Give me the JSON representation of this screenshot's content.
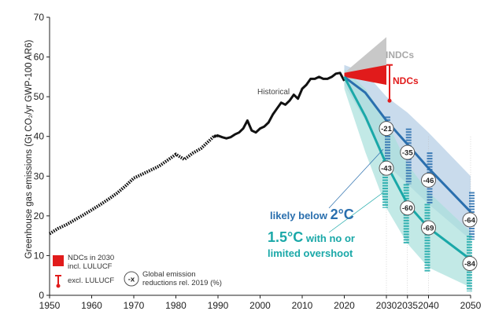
{
  "chart_data": {
    "type": "line",
    "ylabel": "Greenhouse gas emissions (Gt CO₂/yr GWP-100 AR6)",
    "xlim": [
      1950,
      2050
    ],
    "ylim": [
      0,
      70
    ],
    "x_ticks": [
      "1950",
      "1960",
      "1970",
      "1980",
      "1990",
      "2000",
      "2010",
      "2020",
      "2030",
      "2035",
      "2040",
      "2050"
    ],
    "y_ticks": [
      "0",
      "10",
      "20",
      "30",
      "40",
      "50",
      "60",
      "70"
    ],
    "historical": {
      "name": "Historical",
      "x": [
        1950,
        1952,
        1954,
        1956,
        1958,
        1960,
        1962,
        1964,
        1966,
        1968,
        1970,
        1972,
        1974,
        1976,
        1978,
        1980,
        1982,
        1984,
        1986,
        1988,
        1989,
        1990,
        1991,
        1992,
        1993,
        1994,
        1995,
        1996,
        1997,
        1998,
        1999,
        2000,
        2001,
        2002,
        2003,
        2004,
        2005,
        2006,
        2007,
        2008,
        2009,
        2010,
        2011,
        2012,
        2013,
        2014,
        2015,
        2016,
        2017,
        2018,
        2019,
        2020
      ],
      "y": [
        15.5,
        16.8,
        17.8,
        19.0,
        20.2,
        21.5,
        22.8,
        24.2,
        25.7,
        27.5,
        29.5,
        30.5,
        31.5,
        32.5,
        34.0,
        35.5,
        34.2,
        35.8,
        37.0,
        39.0,
        40.0,
        40.2,
        39.8,
        39.5,
        39.8,
        40.5,
        41.0,
        42.0,
        44.0,
        41.5,
        41.0,
        42.0,
        42.5,
        43.5,
        45.5,
        47.0,
        48.5,
        48.0,
        49.0,
        50.5,
        49.5,
        52.0,
        53.0,
        54.5,
        54.5,
        55.0,
        54.5,
        54.5,
        55.0,
        55.8,
        56.0,
        54.0
      ]
    },
    "historical_dotted_until": 1990,
    "indcs": {
      "label": "INDCs",
      "x": [
        2020,
        2030
      ],
      "low": [
        54,
        57
      ],
      "high": [
        56,
        65
      ]
    },
    "ndcs": {
      "label": "NDCs",
      "x": [
        2020,
        2030
      ],
      "low": [
        55,
        53
      ],
      "high": [
        56,
        58
      ],
      "range_2030": [
        49,
        58
      ]
    },
    "scenarios": [
      {
        "name": "likely below 2°C",
        "color": "#2a6fae",
        "x": [
          2020,
          2025,
          2030,
          2035,
          2040,
          2050
        ],
        "median": [
          55,
          51,
          44,
          38,
          32,
          21
        ],
        "low": [
          53,
          44,
          33,
          28,
          23,
          14
        ],
        "high": [
          58,
          56,
          50,
          46,
          41,
          30
        ],
        "bar_years": [
          2030,
          2035,
          2040,
          2050
        ],
        "bar_low": [
          34,
          28,
          23,
          14
        ],
        "bar_high": [
          45,
          42,
          36,
          26
        ],
        "reductions": [
          "-21",
          "-35",
          "-46",
          "-64"
        ],
        "reduction_values": [
          42,
          36,
          29,
          19
        ]
      },
      {
        "name": "1.5°C with no or limited overshoot",
        "color": "#1aa8a8",
        "x": [
          2020,
          2025,
          2030,
          2035,
          2040,
          2050
        ],
        "median": [
          55,
          45,
          33,
          23,
          17,
          9
        ],
        "low": [
          52,
          36,
          22,
          13,
          7,
          2
        ],
        "high": [
          57,
          52,
          44,
          33,
          26,
          16
        ],
        "bar_years": [
          2030,
          2035,
          2040,
          2050
        ],
        "bar_low": [
          22,
          13,
          6,
          1
        ],
        "bar_high": [
          34,
          28,
          23,
          15
        ],
        "reductions": [
          "-43",
          "-60",
          "-69",
          "-84"
        ],
        "reduction_values": [
          32,
          22,
          17,
          8
        ]
      }
    ],
    "annotations": {
      "historical": "Historical",
      "below2_prefix": "likely below ",
      "below2_big": "2°C",
      "one5_big": "1.5°C",
      "one5_suffix": " with no or",
      "one5_line2": "limited overshoot"
    },
    "legend": {
      "ndcs_incl_line1": "NDCs in 2030",
      "ndcs_incl_line2": "incl. LULUCF",
      "ndcs_excl": "excl. LULUCF",
      "badge_example": "-x",
      "badge_line1": "Global emission",
      "badge_line2": "reductions rel. 2019 (%)"
    },
    "colors": {
      "historical": "#111111",
      "indcs": "#c8c8c8",
      "ndcs": "#e11b1b",
      "below2": "#2a6fae",
      "below2_band": "#b7cfe6",
      "one5": "#1aa8a8",
      "one5_band": "#a8e0dc"
    }
  }
}
